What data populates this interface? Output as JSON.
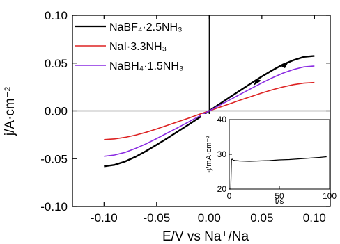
{
  "chart_data": {
    "type": "line",
    "xlim": [
      -0.13,
      0.115
    ],
    "ylim": [
      -0.1,
      0.1
    ],
    "xticks": [
      "-0.10",
      "-0.05",
      "0.00",
      "0.05",
      "0.10"
    ],
    "xtick_values": [
      -0.1,
      -0.05,
      0.0,
      0.05,
      0.1
    ],
    "yticks": [
      "-0.10",
      "-0.05",
      "0.00",
      "0.05",
      "0.10"
    ],
    "ytick_values": [
      -0.1,
      -0.05,
      0.0,
      0.05,
      0.1
    ],
    "xlabel": "E/V vs Na⁺/Na",
    "ylabel": "j/A·cm⁻²",
    "legend_position": "top-left",
    "series": [
      {
        "name": "NaBF₄·2.5NH₃",
        "color": "#000000",
        "x": [
          -0.1,
          -0.09,
          -0.08,
          -0.07,
          -0.06,
          -0.05,
          -0.04,
          -0.03,
          -0.02,
          -0.01,
          0.0,
          0.01,
          0.02,
          0.03,
          0.04,
          0.05,
          0.06,
          0.07,
          0.08,
          0.09,
          0.1
        ],
        "y": [
          -0.058,
          -0.0565,
          -0.053,
          -0.048,
          -0.042,
          -0.0355,
          -0.0287,
          -0.0217,
          -0.0146,
          -0.0074,
          0.0,
          0.0073,
          0.0146,
          0.0218,
          0.029,
          0.036,
          0.0425,
          0.0485,
          0.053,
          0.0565,
          0.0575
        ]
      },
      {
        "name": "NaI·3.3NH₃",
        "color": "#dd2222",
        "x": [
          -0.1,
          -0.09,
          -0.08,
          -0.07,
          -0.06,
          -0.05,
          -0.04,
          -0.03,
          -0.02,
          -0.01,
          0.0,
          0.01,
          0.02,
          0.03,
          0.04,
          0.05,
          0.06,
          0.07,
          0.08,
          0.09,
          0.1
        ],
        "y": [
          -0.03,
          -0.0293,
          -0.0277,
          -0.0254,
          -0.0224,
          -0.0189,
          -0.0152,
          -0.0115,
          -0.0077,
          -0.0038,
          0.0,
          0.0038,
          0.0076,
          0.0114,
          0.0151,
          0.0187,
          0.0221,
          0.025,
          0.0274,
          0.029,
          0.0297
        ]
      },
      {
        "name": "NaBH₄·1.5NH₃",
        "color": "#8a2be2",
        "x": [
          -0.1,
          -0.09,
          -0.08,
          -0.07,
          -0.06,
          -0.05,
          -0.04,
          -0.03,
          -0.02,
          -0.01,
          0.0,
          0.01,
          0.02,
          0.03,
          0.04,
          0.05,
          0.06,
          0.07,
          0.08,
          0.09,
          0.1
        ],
        "y": [
          -0.0475,
          -0.0462,
          -0.0434,
          -0.0393,
          -0.0345,
          -0.029,
          -0.0233,
          -0.0176,
          -0.0118,
          -0.0059,
          0.0,
          0.0059,
          0.0118,
          0.0177,
          0.0235,
          0.0292,
          0.0346,
          0.0394,
          0.0433,
          0.046,
          0.047
        ]
      }
    ],
    "inset": {
      "type": "line",
      "xlabel": "t/s",
      "ylabel": "-j/mA·cm⁻²",
      "xlim": [
        0,
        100
      ],
      "ylim": [
        20,
        40
      ],
      "xticks": [
        "0",
        "50",
        "100"
      ],
      "xtick_values": [
        0,
        50,
        100
      ],
      "yticks": [
        "20",
        "30",
        "40"
      ],
      "ytick_values": [
        20,
        30,
        40
      ],
      "series": [
        {
          "color": "#000000",
          "x": [
            0,
            1.5,
            2.2,
            3,
            4,
            6,
            10,
            20,
            30,
            40,
            50,
            60,
            70,
            80,
            90,
            97
          ],
          "y": [
            20,
            20,
            28.5,
            28.6,
            28.3,
            28.2,
            28.1,
            28.0,
            28.1,
            28.2,
            28.4,
            28.5,
            28.7,
            28.9,
            29.1,
            29.3
          ]
        }
      ]
    }
  }
}
